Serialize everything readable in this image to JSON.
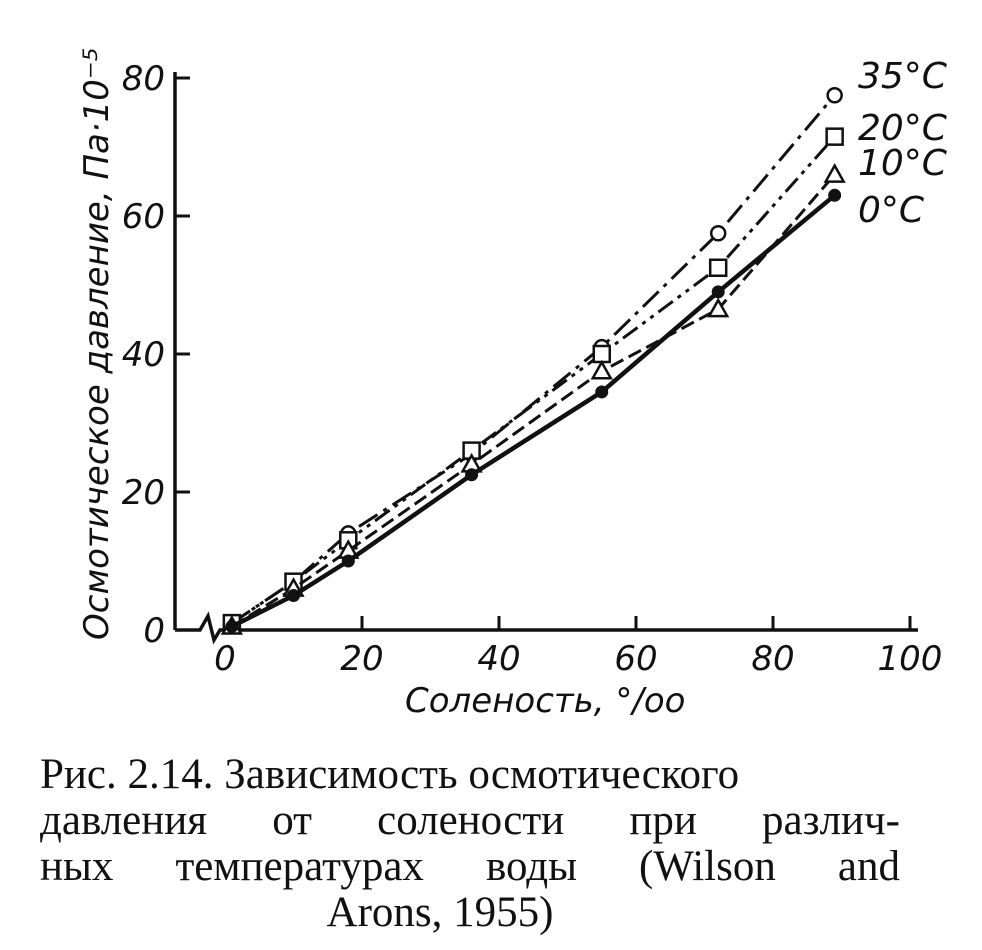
{
  "chart_data": {
    "type": "line",
    "xlabel": "Соленость, °/oo",
    "ylabel": "Осмотическое давление, Па·10⁻⁵",
    "xlim": [
      0,
      100
    ],
    "ylim": [
      0,
      80
    ],
    "x_ticks": [
      "0",
      "20",
      "40",
      "60",
      "80",
      "100"
    ],
    "y_ticks": [
      "0",
      "20",
      "40",
      "60",
      "80"
    ],
    "grid": false,
    "series": [
      {
        "name": "35°C",
        "marker": "circle-open",
        "line": "dash-dot",
        "x": [
          1,
          10,
          18,
          36,
          55,
          72,
          89
        ],
        "y": [
          1,
          7,
          14,
          25.5,
          41,
          57.5,
          77.5
        ]
      },
      {
        "name": "20°C",
        "marker": "square-open",
        "line": "dash-dot-dot",
        "x": [
          1,
          10,
          18,
          36,
          55,
          72,
          89
        ],
        "y": [
          1,
          7,
          13,
          26,
          40,
          52.5,
          71.5
        ]
      },
      {
        "name": "10°C",
        "marker": "triangle-open",
        "line": "dashed",
        "x": [
          1,
          10,
          18,
          36,
          55,
          72,
          89
        ],
        "y": [
          0.5,
          6,
          11.5,
          24,
          37.5,
          46.5,
          66
        ]
      },
      {
        "name": "0°C",
        "marker": "circle-filled",
        "line": "solid",
        "x": [
          1,
          10,
          18,
          36,
          55,
          72,
          89
        ],
        "y": [
          0.5,
          5,
          10,
          22.5,
          34.5,
          49,
          63
        ]
      }
    ]
  },
  "caption": {
    "line1": "Рис. 2.14. Зависимость осмотического",
    "line2": "давления от солености при различ-",
    "line3": "ных температурах воды (Wilson and",
    "line4": "Arons, 1955)"
  }
}
